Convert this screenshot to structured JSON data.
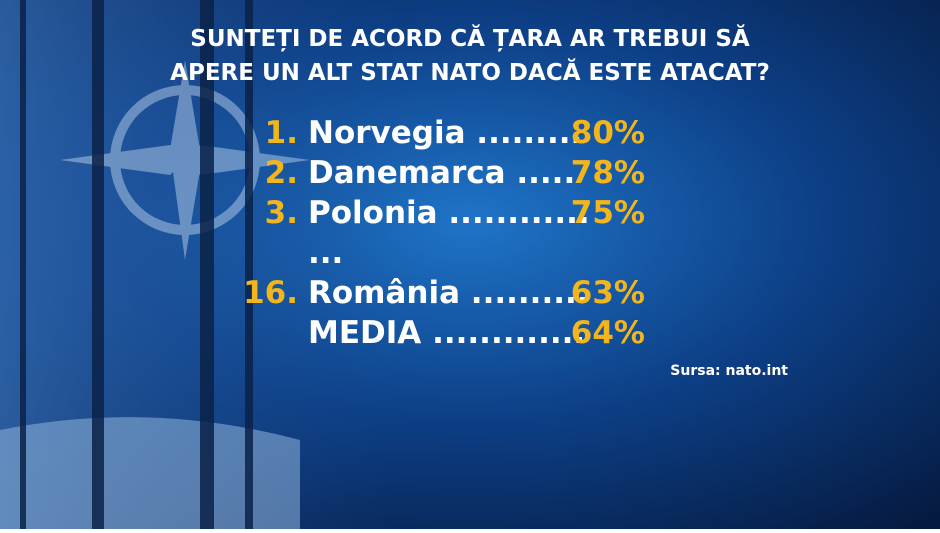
{
  "header": {
    "title_lines": [
      "SUNTEȚI DE ACORD CĂ ȚARA AR TREBUI SĂ",
      "APERE UN ALT STAT NATO DACĂ ESTE ATACAT?"
    ]
  },
  "ranking": {
    "rows": [
      {
        "rank": "1.",
        "label": "Norvegia .........",
        "value": "80%"
      },
      {
        "rank": "2.",
        "label": "Danemarca .....",
        "value": "78%"
      },
      {
        "rank": "3.",
        "label": "Polonia ............",
        "value": "75%"
      },
      {
        "label": "..."
      },
      {
        "rank": "16.",
        "label": "România ..........",
        "value": "63%"
      },
      {
        "label": "MEDIA .............",
        "value": "64%"
      }
    ]
  },
  "source": "Sursa: nato.int"
}
